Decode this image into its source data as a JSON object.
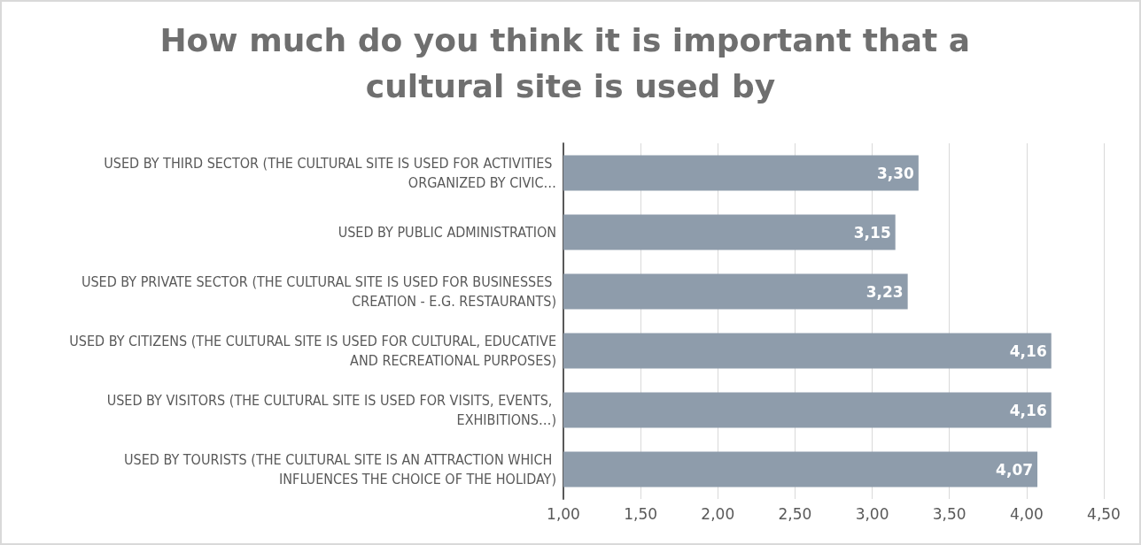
{
  "chart_data": {
    "type": "bar",
    "orientation": "horizontal",
    "title": "How much do you think it is important that a cultural site is used by",
    "categories": [
      "USED BY THIRD SECTOR (THE CULTURAL SITE IS USED FOR ACTIVITIES ORGANIZED BY CIVIC…",
      "USED BY PUBLIC ADMINISTRATION",
      "USED BY PRIVATE SECTOR (THE CULTURAL SITE IS USED FOR BUSINESSES CREATION - E.G. RESTAURANTS)",
      "USED BY CITIZENS (THE CULTURAL SITE IS USED FOR CULTURAL, EDUCATIVE AND RECREATIONAL PURPOSES)",
      "USED BY VISITORS (THE CULTURAL SITE IS USED FOR VISITS, EVENTS, EXHIBITIONS…)",
      "USED BY TOURISTS (THE CULTURAL SITE IS AN ATTRACTION WHICH INFLUENCES THE CHOICE OF THE HOLIDAY)"
    ],
    "values": [
      3.3,
      3.15,
      3.23,
      4.16,
      4.16,
      4.07
    ],
    "value_labels": [
      "3,30",
      "3,15",
      "3,23",
      "4,16",
      "4,16",
      "4,07"
    ],
    "color": "#8e9cab",
    "xlim": [
      1,
      4.5
    ],
    "xticks": [
      {
        "value": 1,
        "label": "1,00"
      },
      {
        "value": 1.5,
        "label": "1,50"
      },
      {
        "value": 2,
        "label": "2,00"
      },
      {
        "value": 2.5,
        "label": "2,50"
      },
      {
        "value": 3,
        "label": "3,00"
      },
      {
        "value": 3.5,
        "label": "3,50"
      },
      {
        "value": 4,
        "label": "4,00"
      },
      {
        "value": 4.5,
        "label": "4,50"
      }
    ],
    "grid": "x"
  }
}
